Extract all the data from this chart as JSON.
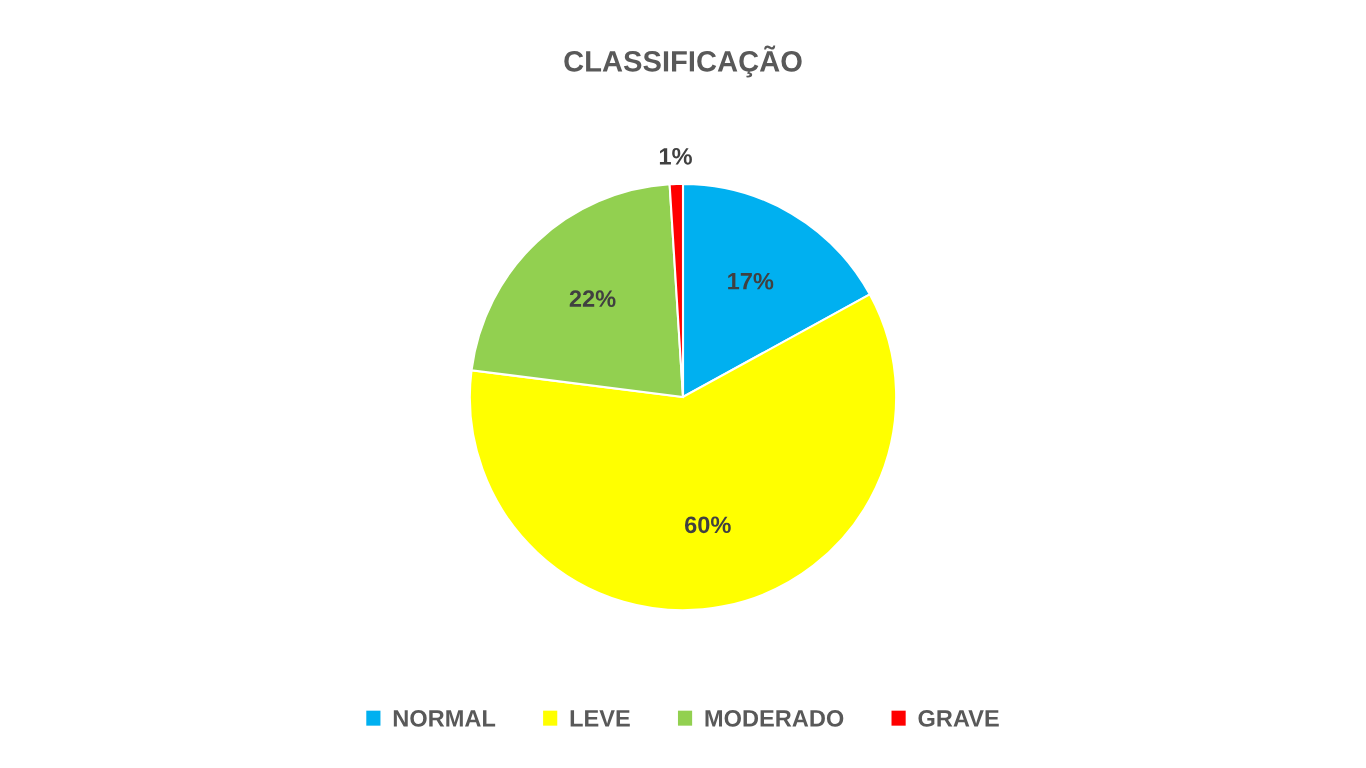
{
  "chart_data": {
    "type": "pie",
    "title": "CLASSIFICAÇÃO",
    "categories": [
      "NORMAL",
      "LEVE",
      "MODERADO",
      "GRAVE"
    ],
    "values": [
      17,
      60,
      22,
      1
    ],
    "colors": [
      "#00b0f0",
      "#ffff00",
      "#92d050",
      "#ff0000"
    ],
    "value_labels": [
      "17%",
      "60%",
      "22%",
      "1%"
    ],
    "legend": "bottom"
  }
}
